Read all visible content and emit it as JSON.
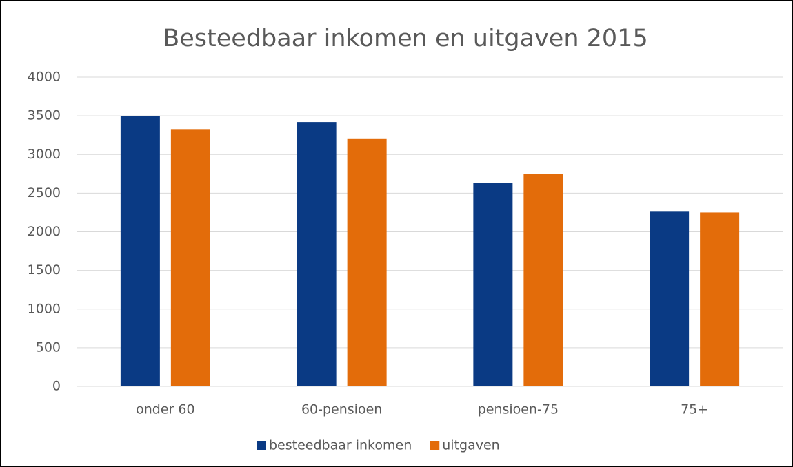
{
  "chart_data": {
    "type": "bar",
    "title": "Besteedbaar inkomen en uitgaven 2015",
    "categories": [
      "onder 60",
      "60-pensioen",
      "pensioen-75",
      "75+"
    ],
    "series": [
      {
        "name": "besteedbaar inkomen",
        "color": "#0a3a84",
        "values": [
          3500,
          3420,
          2630,
          2260
        ]
      },
      {
        "name": "uitgaven",
        "color": "#e36c0a",
        "values": [
          3320,
          3200,
          2750,
          2250
        ]
      }
    ],
    "ylim": [
      0,
      4000
    ],
    "yticks": [
      0,
      500,
      1000,
      1500,
      2000,
      2500,
      3000,
      3500,
      4000
    ],
    "grid": true,
    "legend": "bottom"
  }
}
